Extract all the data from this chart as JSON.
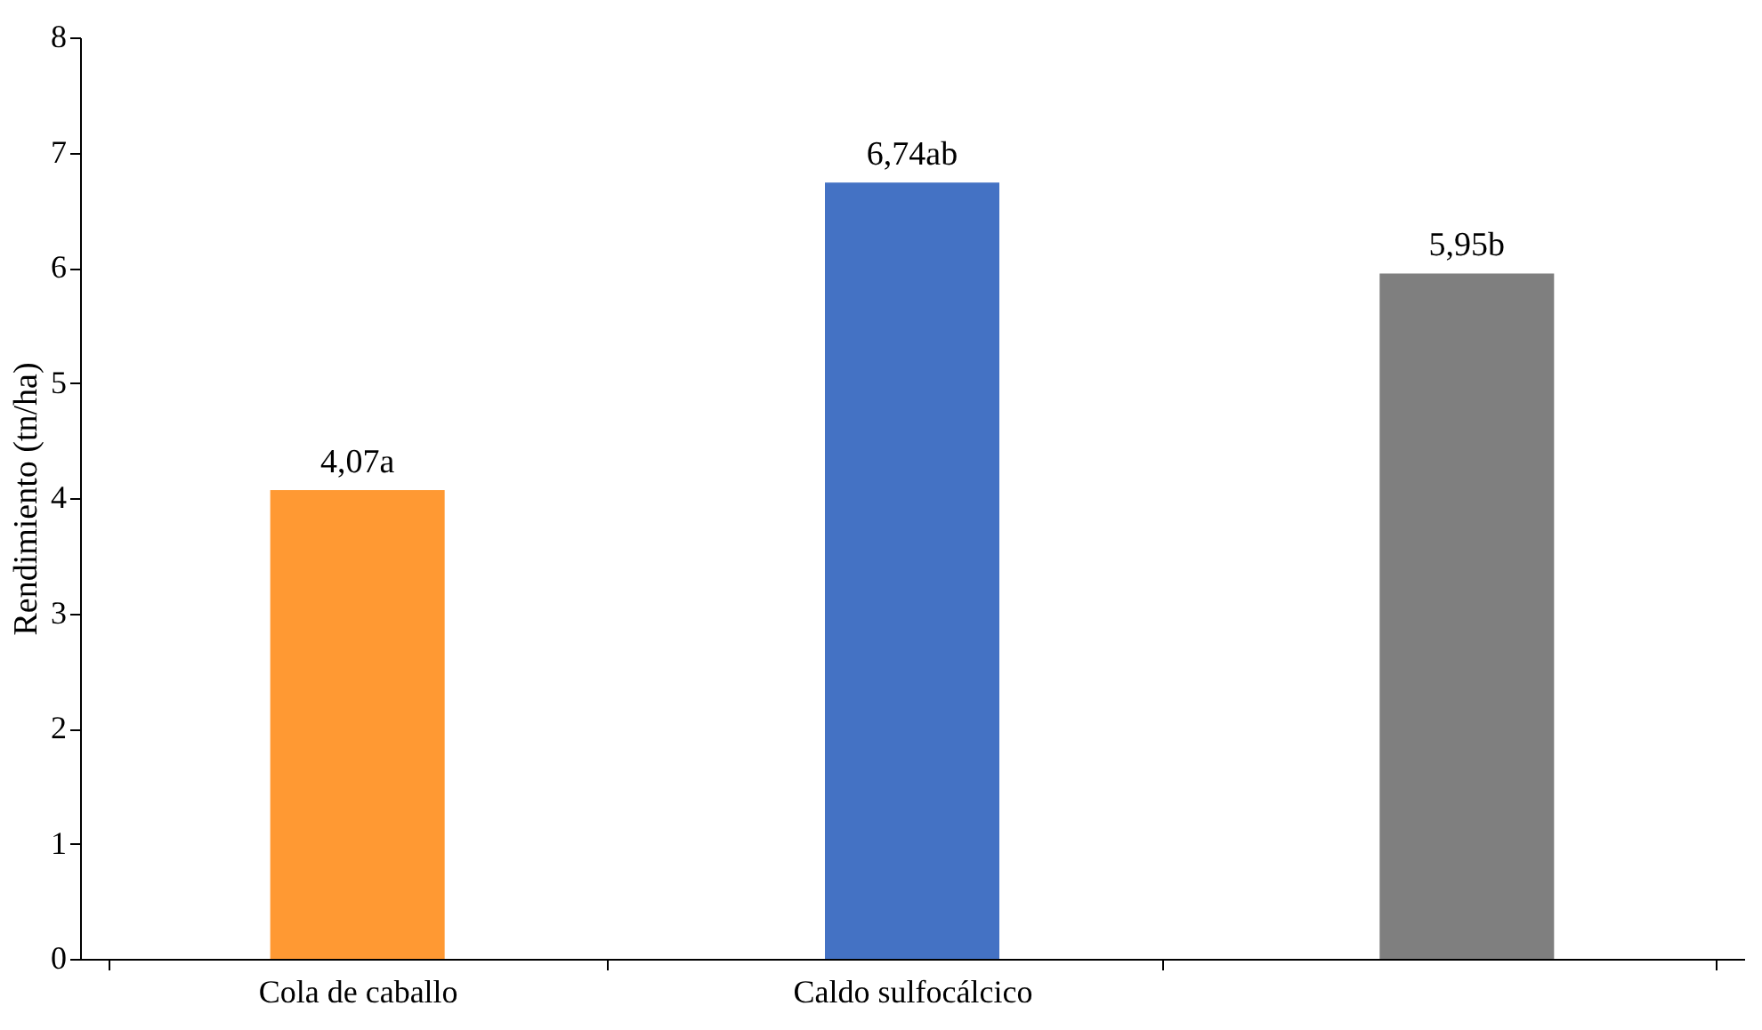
{
  "chart_data": {
    "type": "bar",
    "ylabel": "Rendimiento (tn/ha)",
    "categories": [
      "Cola de caballo",
      "Caldo sulfocálcico",
      null
    ],
    "values": [
      4.07,
      6.74,
      5.95
    ],
    "colors": [
      "#ff9933",
      "#4472c4",
      "#7f7f7f"
    ],
    "value_labels": [
      "4,07a",
      "6,74ab",
      "5,95b"
    ],
    "ylim": [
      0,
      8
    ],
    "yticks": [
      0,
      1,
      2,
      3,
      4,
      5,
      6,
      7,
      8
    ],
    "grid": false
  }
}
